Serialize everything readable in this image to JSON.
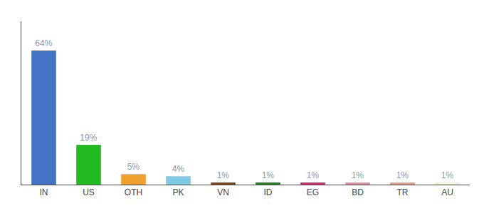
{
  "chart_data": {
    "type": "bar",
    "categories": [
      "IN",
      "US",
      "OTH",
      "PK",
      "VN",
      "ID",
      "EG",
      "BD",
      "TR",
      "AU"
    ],
    "values": [
      64,
      19,
      5,
      4,
      1,
      1,
      1,
      1,
      1,
      1
    ],
    "value_labels": [
      "64%",
      "19%",
      "5%",
      "4%",
      "1%",
      "1%",
      "1%",
      "1%",
      "1%",
      "1%"
    ],
    "colors": [
      "#4472c4",
      "#22bb22",
      "#f0a030",
      "#7ec8e3",
      "#8b4513",
      "#1a8a1a",
      "#e8207a",
      "#e890a0",
      "#e8a080",
      "#f5f0d0"
    ],
    "ylim": [
      0,
      78
    ],
    "data_labels": true,
    "tick_labels": "x",
    "grid": false
  }
}
